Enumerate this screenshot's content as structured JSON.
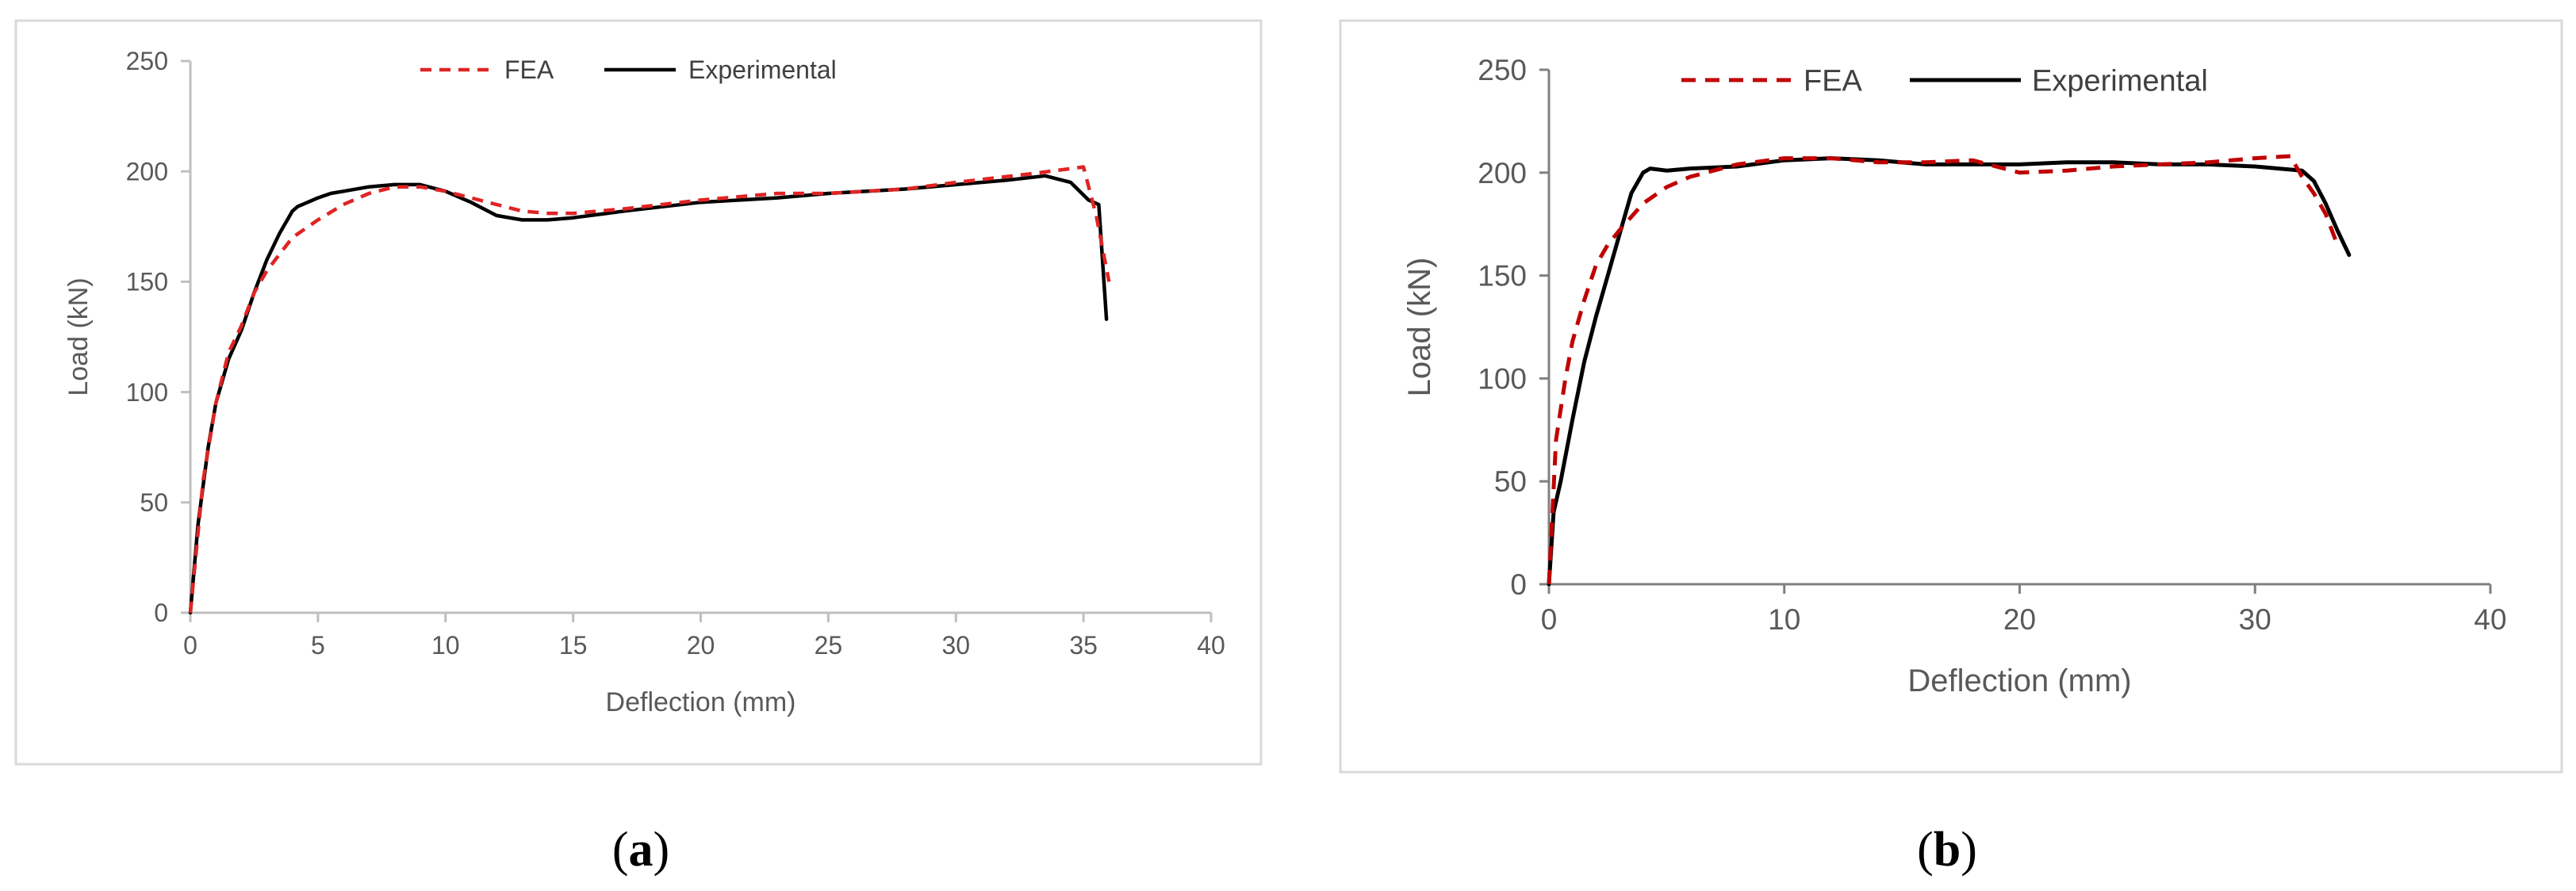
{
  "chart_data": [
    {
      "type": "line",
      "panel_label": "a",
      "xlabel": "Deflection (mm)",
      "ylabel": "Load (kN)",
      "xlim": [
        0,
        40
      ],
      "ylim": [
        0,
        250
      ],
      "xticks": [
        "0",
        "5",
        "10",
        "15",
        "20",
        "25",
        "30",
        "35",
        "40"
      ],
      "yticks": [
        "0",
        "50",
        "100",
        "150",
        "200",
        "250"
      ],
      "grid": false,
      "legend_position": "top-center",
      "series": [
        {
          "name": "FEA",
          "color": "#e02424",
          "style": "dashed",
          "x": [
            0,
            0.5,
            1,
            1.5,
            2,
            2.5,
            3,
            4,
            5,
            6,
            7,
            8,
            9,
            10,
            11,
            12,
            13,
            14,
            15,
            17,
            20,
            23,
            25,
            28,
            30,
            33,
            35,
            35.5,
            36
          ],
          "y": [
            0,
            60,
            95,
            118,
            130,
            145,
            155,
            170,
            178,
            185,
            190,
            193,
            193,
            191,
            188,
            185,
            182,
            181,
            181,
            183,
            187,
            190,
            190,
            192,
            195,
            199,
            202,
            180,
            150
          ]
        },
        {
          "name": "Experimental",
          "color": "#000000",
          "style": "solid",
          "x": [
            0,
            0.3,
            0.7,
            1,
            1.5,
            2,
            2.5,
            3,
            3.5,
            4,
            4.2,
            5,
            5.5,
            6,
            7,
            8,
            9,
            10,
            11,
            12,
            13,
            14,
            15,
            17,
            20,
            23,
            25,
            28,
            30,
            32,
            33.5,
            34.5,
            35.2,
            35.6,
            35.9
          ],
          "y": [
            0,
            40,
            75,
            95,
            115,
            128,
            145,
            160,
            172,
            182,
            184,
            188,
            190,
            191,
            193,
            194,
            194,
            191,
            186,
            180,
            178,
            178,
            179,
            182,
            186,
            188,
            190,
            192,
            194,
            196,
            198,
            195,
            187,
            185,
            133
          ]
        }
      ]
    },
    {
      "type": "line",
      "panel_label": "b",
      "xlabel": "Deflection (mm)",
      "ylabel": "Load (kN)",
      "xlim": [
        0,
        40
      ],
      "ylim": [
        0,
        250
      ],
      "xticks": [
        "0",
        "10",
        "20",
        "30",
        "40"
      ],
      "yticks": [
        "0",
        "50",
        "100",
        "150",
        "200",
        "250"
      ],
      "grid": false,
      "legend_position": "top-center",
      "series": [
        {
          "name": "FEA",
          "color": "#c00000",
          "style": "dashed",
          "x": [
            0,
            0.3,
            0.7,
            1,
            1.5,
            2,
            2.5,
            3,
            4,
            5,
            6,
            8,
            10,
            12,
            14,
            16,
            18,
            20,
            22,
            24,
            26,
            28,
            30,
            31.5,
            32,
            32.5,
            33,
            33.5
          ],
          "y": [
            0,
            70,
            100,
            118,
            138,
            155,
            165,
            172,
            185,
            193,
            198,
            204,
            207,
            207,
            205,
            205,
            206,
            200,
            201,
            203,
            204,
            205,
            207,
            208,
            198,
            190,
            180,
            165
          ],
          "label_b_unused": ""
        },
        {
          "name": "Experimental",
          "color": "#000000",
          "style": "solid",
          "x": [
            0,
            0.2,
            0.5,
            1,
            1.5,
            2,
            2.5,
            3,
            3.5,
            4,
            4.3,
            5,
            6,
            8,
            10,
            12,
            14,
            16,
            18,
            20,
            22,
            24,
            26,
            28,
            30,
            31,
            32,
            32.5,
            33,
            33.5,
            34
          ],
          "y": [
            0,
            35,
            50,
            80,
            108,
            130,
            150,
            170,
            190,
            200,
            202,
            201,
            202,
            203,
            206,
            207,
            206,
            204,
            204,
            204,
            205,
            205,
            204,
            204,
            203,
            202,
            201,
            196,
            185,
            172,
            160
          ]
        }
      ]
    }
  ]
}
